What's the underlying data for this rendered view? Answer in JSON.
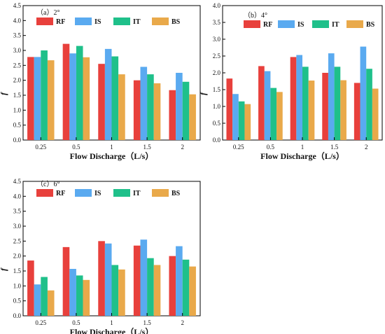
{
  "colors": {
    "RF": "#e8403c",
    "IS": "#5aaaf0",
    "IT": "#1fc08a",
    "BS": "#e9a94a"
  },
  "chart_data": [
    {
      "type": "bar",
      "panel_label": "（a）2°",
      "categories": [
        "0.25",
        "0.5",
        "1",
        "1.5",
        "2"
      ],
      "series": [
        {
          "name": "RF",
          "values": [
            2.78,
            3.22,
            2.55,
            2.0,
            1.67
          ]
        },
        {
          "name": "IS",
          "values": [
            2.78,
            2.9,
            3.05,
            2.45,
            2.25
          ]
        },
        {
          "name": "IT",
          "values": [
            3.0,
            3.15,
            2.8,
            2.2,
            1.95
          ]
        },
        {
          "name": "BS",
          "values": [
            2.67,
            2.77,
            2.2,
            1.9,
            1.53
          ]
        }
      ],
      "xlabel": "Flow Discharge（L/s）",
      "ylabel": "f",
      "ylim": [
        0,
        4.5
      ],
      "yticks": [
        "0.0",
        "0.5",
        "1.0",
        "1.5",
        "2.0",
        "2.5",
        "3.0",
        "3.5",
        "4.0",
        "4.5"
      ],
      "legend": "top-left",
      "legend_cols": 4
    },
    {
      "type": "bar",
      "panel_label": "（b）4°",
      "categories": [
        "0.25",
        "0.5",
        "1",
        "1.5",
        "2"
      ],
      "series": [
        {
          "name": "RF",
          "values": [
            1.83,
            2.2,
            2.47,
            2.0,
            1.7
          ]
        },
        {
          "name": "IS",
          "values": [
            1.37,
            2.05,
            2.53,
            2.58,
            2.78
          ]
        },
        {
          "name": "IT",
          "values": [
            1.15,
            1.55,
            2.18,
            2.18,
            2.12
          ]
        },
        {
          "name": "BS",
          "values": [
            1.07,
            1.43,
            1.77,
            1.78,
            1.53
          ]
        }
      ],
      "xlabel": "Flow Discharge（L/s）",
      "ylabel": "f",
      "ylim": [
        0,
        4.0
      ],
      "yticks": [
        "0.0",
        "0.5",
        "1.0",
        "1.5",
        "2.0",
        "2.5",
        "3.0",
        "3.5",
        "4.0"
      ],
      "legend": "top-right",
      "legend_cols": 4
    },
    {
      "type": "bar",
      "panel_label": "（c）6°",
      "categories": [
        "0.25",
        "0.5",
        "1",
        "1.5",
        "2"
      ],
      "series": [
        {
          "name": "RF",
          "values": [
            1.85,
            2.3,
            2.5,
            2.35,
            2.0
          ]
        },
        {
          "name": "IS",
          "values": [
            1.05,
            1.57,
            2.42,
            2.55,
            2.33
          ]
        },
        {
          "name": "IT",
          "values": [
            1.3,
            1.35,
            1.7,
            1.93,
            1.88
          ]
        },
        {
          "name": "BS",
          "values": [
            0.85,
            1.2,
            1.55,
            1.7,
            1.65
          ]
        }
      ],
      "xlabel": "Flow Discharge（L/s）",
      "ylabel": "f",
      "ylim": [
        0,
        4.5
      ],
      "yticks": [
        "0.0",
        "0.5",
        "1.0",
        "1.5",
        "2.0",
        "2.5",
        "3.0",
        "3.5",
        "4.0",
        "4.5"
      ],
      "legend": "top-left",
      "legend_cols": 4
    }
  ]
}
